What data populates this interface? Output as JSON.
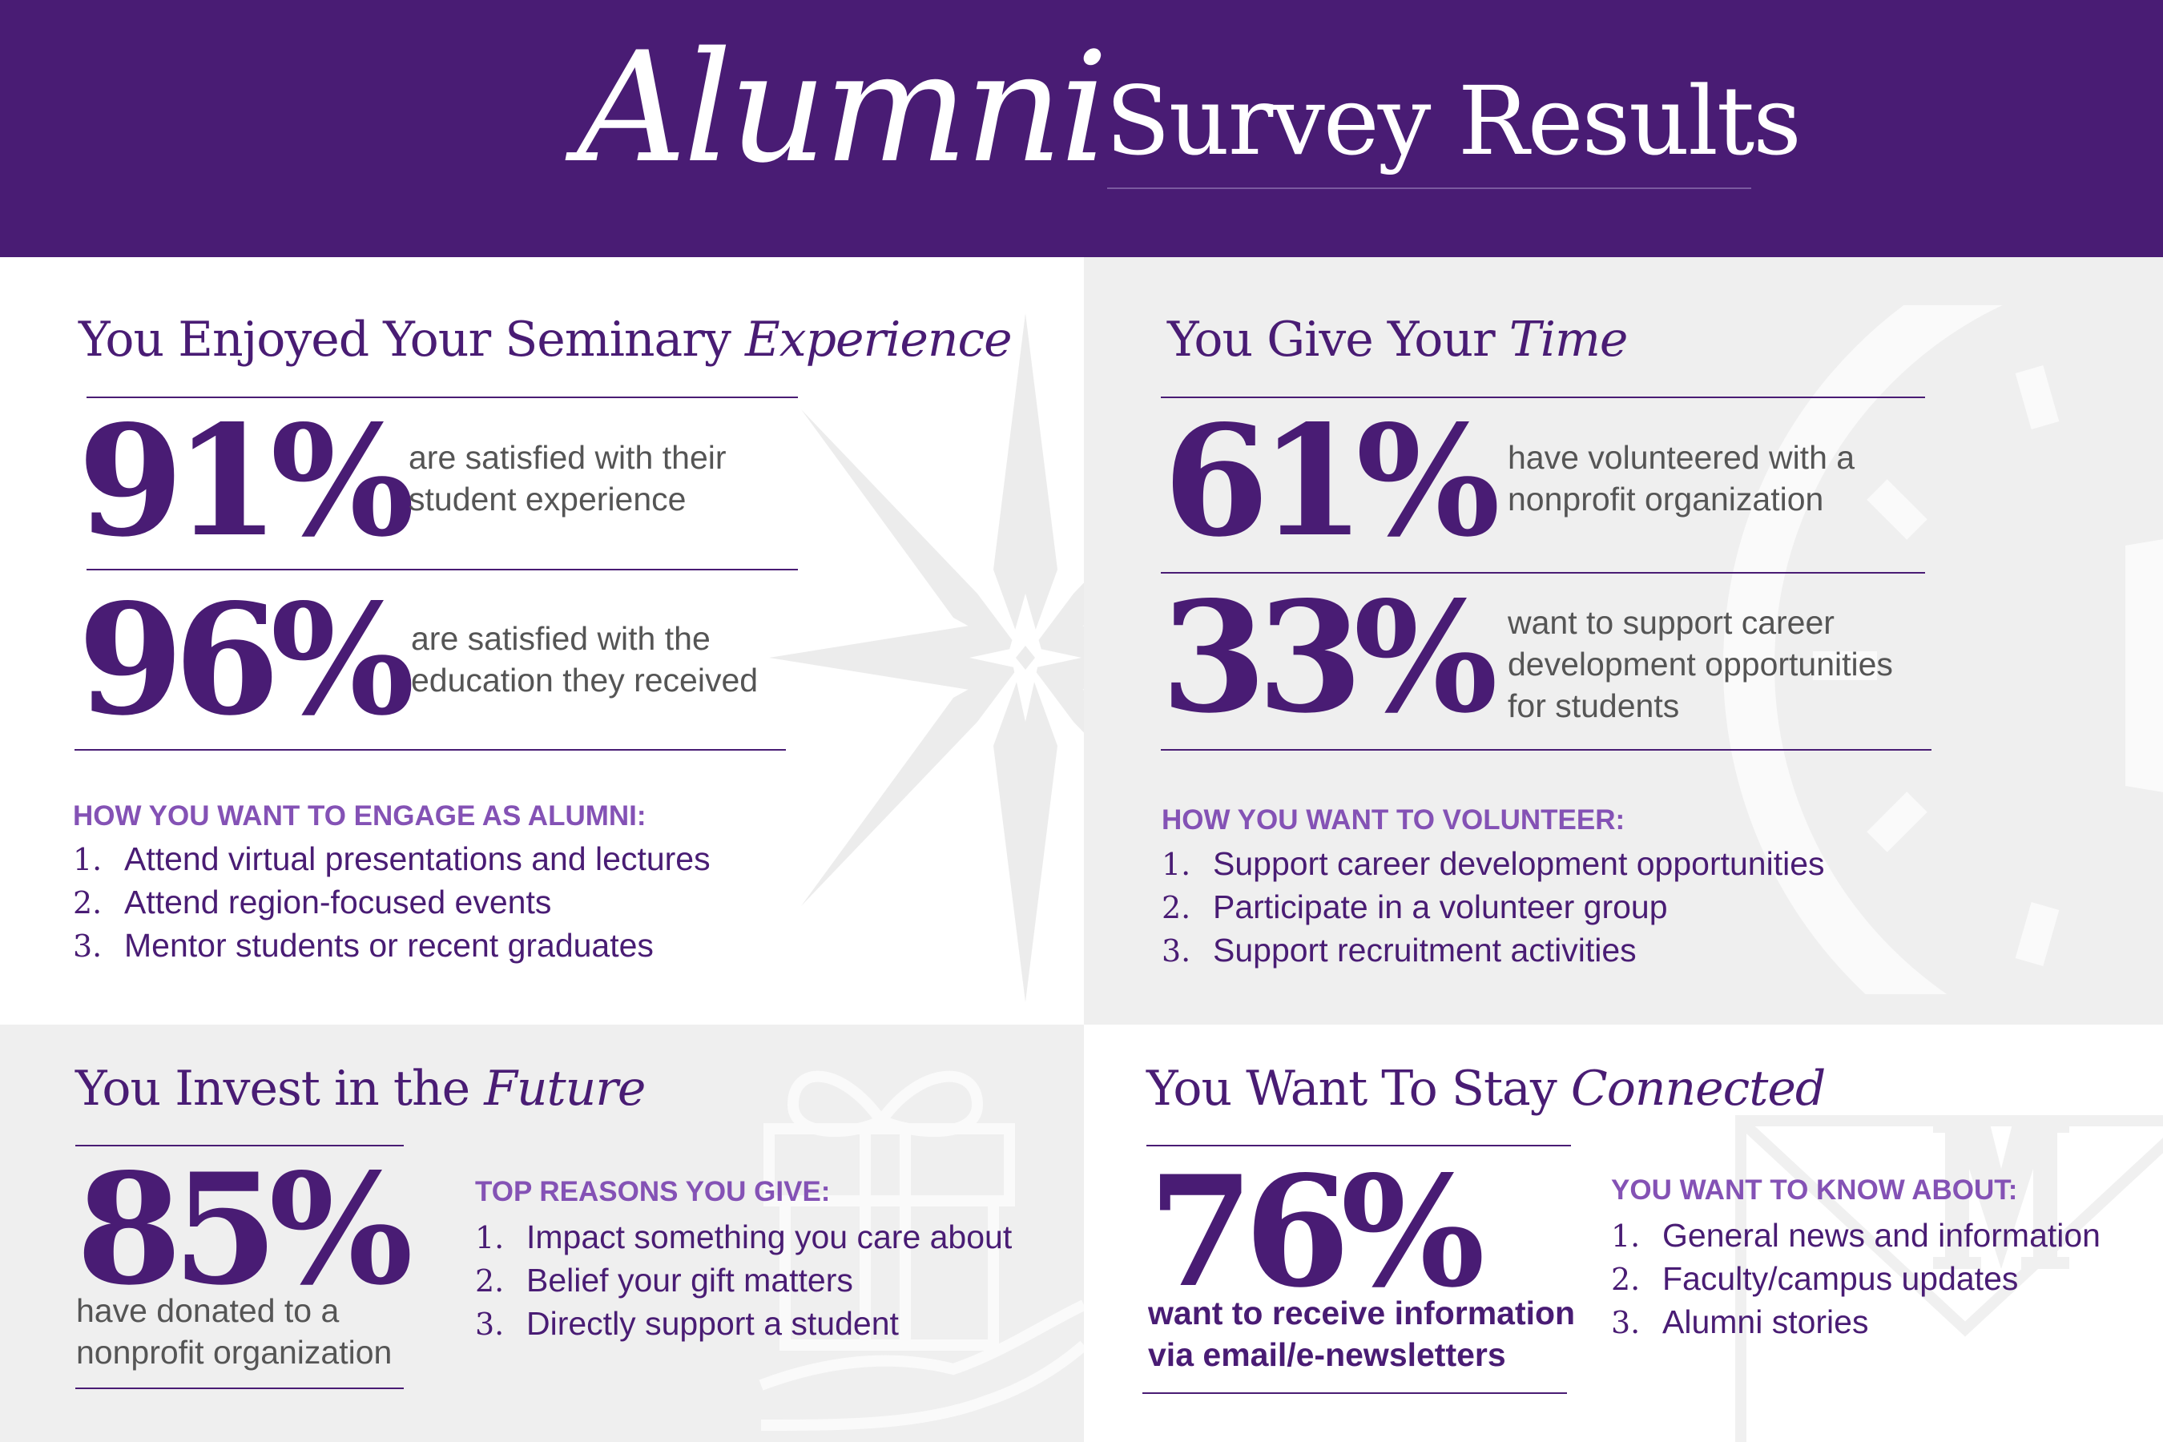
{
  "colors": {
    "primary": "#491c74",
    "accent": "#8452b5",
    "text_gray": "#555555",
    "panel_gray": "#efefef"
  },
  "header": {
    "title_italic": "Alumni",
    "title_rest": "Survey Results"
  },
  "sections": {
    "experience": {
      "heading": "You Enjoyed Your Seminary",
      "heading_em": "Experience",
      "stats": [
        {
          "value": "91%",
          "text": "are satisfied with their\nstudent experience"
        },
        {
          "value": "96%",
          "text": "are satisfied with the\neducation they received"
        }
      ],
      "list_title": "HOW YOU WANT TO ENGAGE AS ALUMNI:",
      "list": [
        {
          "num": "1.",
          "text": "Attend virtual presentations and lectures"
        },
        {
          "num": "2.",
          "text": "Attend region-focused events"
        },
        {
          "num": "3.",
          "text": "Mentor students or recent graduates"
        }
      ],
      "watermark_icon": "compass-star-icon"
    },
    "time": {
      "heading": "You Give Your",
      "heading_em": "Time",
      "stats": [
        {
          "value": "61%",
          "text": "have volunteered with a\nnonprofit organization"
        },
        {
          "value": "33%",
          "text": "want to support career\ndevelopment opportunities\nfor students"
        }
      ],
      "list_title": "HOW YOU WANT TO VOLUNTEER:",
      "list": [
        {
          "num": "1.",
          "text": "Support career development opportunities"
        },
        {
          "num": "2.",
          "text": "Participate in a volunteer group"
        },
        {
          "num": "3.",
          "text": "Support recruitment activities"
        }
      ],
      "watermark_icon": "clock-icon"
    },
    "future": {
      "heading": "You Invest in the",
      "heading_em": "Future",
      "stat": {
        "value": "85%",
        "text": "have donated to a\nnonprofit organization"
      },
      "list_title": "TOP REASONS YOU GIVE:",
      "list": [
        {
          "num": "1.",
          "text": "Impact something you care about"
        },
        {
          "num": "2.",
          "text": "Belief your gift matters"
        },
        {
          "num": "3.",
          "text": "Directly support a student"
        }
      ],
      "watermark_icon": "gift-hand-icon"
    },
    "connected": {
      "heading": "You Want To Stay",
      "heading_em": "Connected",
      "stat": {
        "value": "76%",
        "text": "want to receive information\nvia email/e-newsletters"
      },
      "list_title": "YOU WANT TO KNOW ABOUT:",
      "list": [
        {
          "num": "1.",
          "text": "General news and information"
        },
        {
          "num": "2.",
          "text": "Faculty/campus updates"
        },
        {
          "num": "3.",
          "text": "Alumni stories"
        }
      ],
      "watermark_icon": "envelope-icon"
    }
  }
}
